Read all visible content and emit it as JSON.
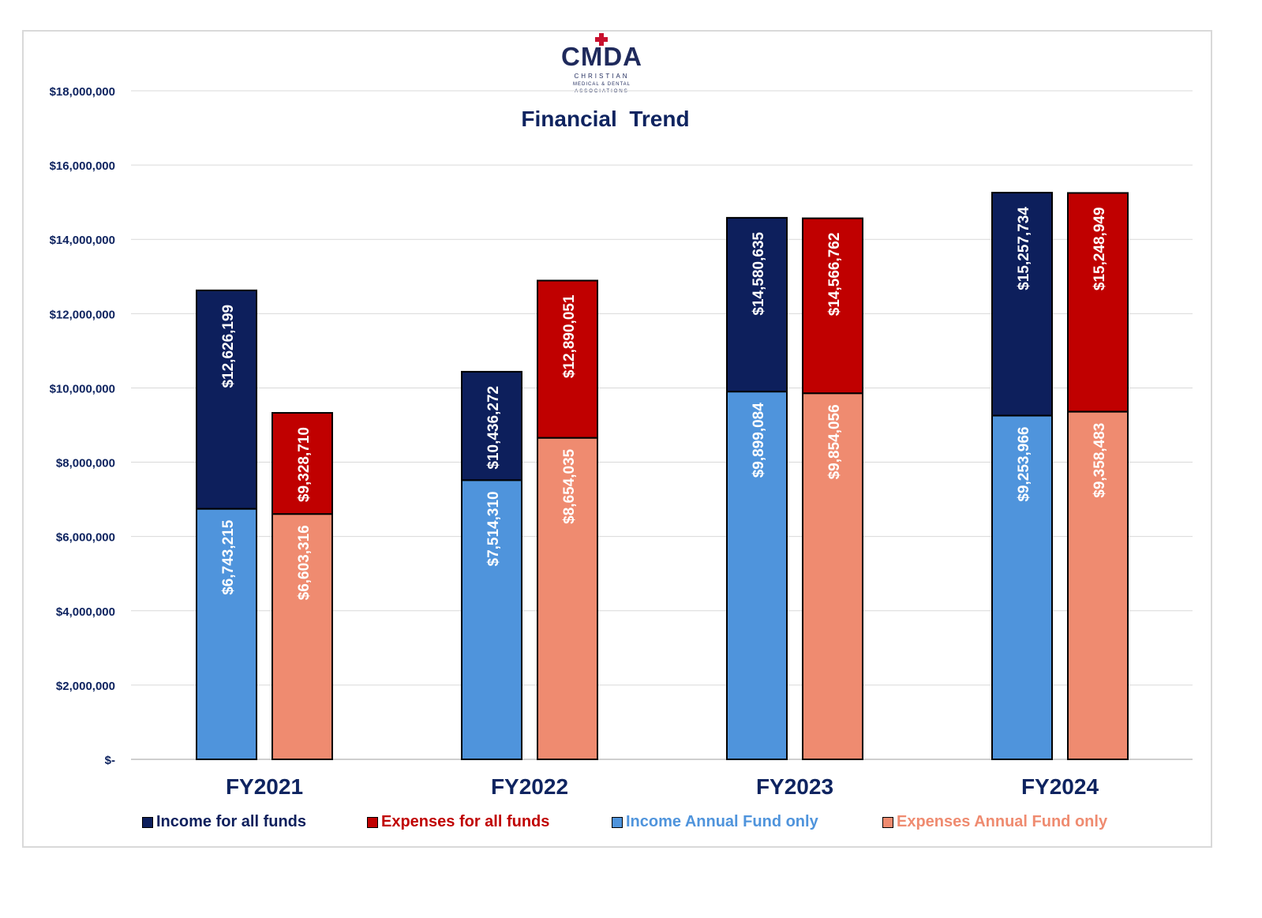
{
  "logo": {
    "name": "CMDA",
    "line1": "CHRISTIAN",
    "line2": "MEDICAL & DENTAL",
    "line3": "ASSOCIATIONS"
  },
  "colors": {
    "income_all": "#0d1f5c",
    "expenses_all": "#c00000",
    "income_annual": "#4f94dc",
    "expenses_annual": "#ef8b70"
  },
  "chart_data": {
    "type": "bar",
    "title": "Financial  Trend",
    "categories": [
      "FY2021",
      "FY2022",
      "FY2023",
      "FY2024"
    ],
    "ylim": [
      0,
      18000000
    ],
    "yticks": [
      0,
      2000000,
      4000000,
      6000000,
      8000000,
      10000000,
      12000000,
      14000000,
      16000000,
      18000000
    ],
    "ytick_labels": [
      "$-",
      "$2,000,000",
      "$4,000,000",
      "$6,000,000",
      "$8,000,000",
      "$10,000,000",
      "$12,000,000",
      "$14,000,000",
      "$16,000,000",
      "$18,000,000"
    ],
    "grid": true,
    "legend_position": "bottom",
    "series": [
      {
        "name": "Income for all funds",
        "values": [
          12626199,
          10436272,
          14580635,
          15257734
        ],
        "labels": [
          "$12,626,199",
          "$10,436,272",
          "$14,580,635",
          "$15,257,734"
        ]
      },
      {
        "name": "Expenses for all funds",
        "values": [
          9328710,
          12890051,
          14566762,
          15248949
        ],
        "labels": [
          "$9,328,710",
          "$12,890,051",
          "$14,566,762",
          "$15,248,949"
        ]
      },
      {
        "name": "Income Annual Fund only",
        "values": [
          6743215,
          7514310,
          9899084,
          9253966
        ],
        "labels": [
          "$6,743,215",
          "$7,514,310",
          "$9,899,084",
          "$9,253,966"
        ]
      },
      {
        "name": "Expenses Annual Fund only",
        "values": [
          6603316,
          8654035,
          9854056,
          9358483
        ],
        "labels": [
          "$6,603,316",
          "$8,654,035",
          "$9,854,056",
          "$9,358,483"
        ]
      }
    ]
  }
}
